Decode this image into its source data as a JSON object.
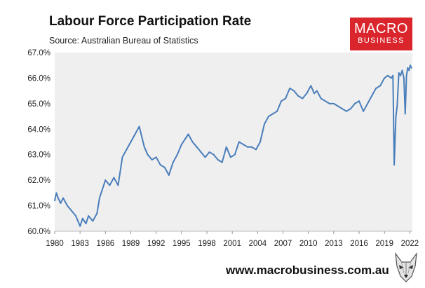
{
  "header": {
    "title": "Labour Force Participation Rate",
    "subtitle": "Source: Australian Bureau of Statistics"
  },
  "logo": {
    "line1": "MACRO",
    "line2": "BUSINESS",
    "color": "#d9252b"
  },
  "footer": {
    "url": "www.macrobusiness.com.au",
    "mascot_icon": "wolf-logo-icon"
  },
  "colors": {
    "line": "#4a7ebb",
    "plot_background": "#efefef"
  },
  "chart_data": {
    "type": "line",
    "title": "Labour Force Participation Rate",
    "subtitle": "Source: Australian Bureau of Statistics",
    "xlabel": "",
    "ylabel": "",
    "xlim": [
      1980,
      2022.3
    ],
    "ylim": [
      60.0,
      67.0
    ],
    "y_ticks": [
      "60.0%",
      "61.0%",
      "62.0%",
      "63.0%",
      "64.0%",
      "65.0%",
      "66.0%",
      "67.0%"
    ],
    "y_tick_values": [
      60,
      61,
      62,
      63,
      64,
      65,
      66,
      67
    ],
    "x_ticks": [
      "1980",
      "1983",
      "1986",
      "1989",
      "1992",
      "1995",
      "1998",
      "2001",
      "2004",
      "2007",
      "2010",
      "2013",
      "2016",
      "2019",
      "2022"
    ],
    "x_tick_values": [
      1980,
      1983,
      1986,
      1989,
      1992,
      1995,
      1998,
      2001,
      2004,
      2007,
      2010,
      2013,
      2016,
      2019,
      2022
    ],
    "grid": false,
    "legend": "none",
    "series": [
      {
        "x": [
          1980.0,
          1980.2,
          1980.4,
          1980.7,
          1981.0,
          1981.5,
          1982.0,
          1982.5,
          1983.0,
          1983.3,
          1983.7,
          1984.0,
          1984.5,
          1985.0,
          1985.3,
          1985.6,
          1986.0,
          1986.5,
          1987.0,
          1987.5,
          1988.0,
          1988.5,
          1989.0,
          1989.5,
          1990.0,
          1990.3,
          1990.6,
          1991.0,
          1991.5,
          1992.0,
          1992.5,
          1993.0,
          1993.5,
          1994.0,
          1994.5,
          1995.0,
          1995.4,
          1995.8,
          1996.3,
          1996.8,
          1997.3,
          1997.8,
          1998.3,
          1998.8,
          1999.3,
          1999.8,
          2000.3,
          2000.8,
          2001.3,
          2001.8,
          2002.3,
          2002.8,
          2003.3,
          2003.8,
          2004.3,
          2004.8,
          2005.3,
          2005.8,
          2006.3,
          2006.8,
          2007.3,
          2007.8,
          2008.3,
          2008.8,
          2009.3,
          2009.8,
          2010.3,
          2010.7,
          2011.0,
          2011.5,
          2012.0,
          2012.5,
          2013.0,
          2013.5,
          2014.0,
          2014.5,
          2015.0,
          2015.5,
          2016.0,
          2016.5,
          2017.0,
          2017.5,
          2018.0,
          2018.5,
          2019.0,
          2019.4,
          2019.8,
          2020.0,
          2020.15,
          2020.35,
          2020.5,
          2020.7,
          2020.9,
          2021.1,
          2021.3,
          2021.45,
          2021.6,
          2021.75,
          2021.9,
          2022.05,
          2022.2
        ],
        "values": [
          61.2,
          61.5,
          61.3,
          61.1,
          61.3,
          61.0,
          60.8,
          60.6,
          60.2,
          60.5,
          60.3,
          60.6,
          60.4,
          60.7,
          61.3,
          61.6,
          62.0,
          61.8,
          62.1,
          61.8,
          62.9,
          63.2,
          63.5,
          63.8,
          64.1,
          63.7,
          63.3,
          63.0,
          62.8,
          62.9,
          62.6,
          62.5,
          62.2,
          62.7,
          63.0,
          63.4,
          63.6,
          63.8,
          63.5,
          63.3,
          63.1,
          62.9,
          63.1,
          63.0,
          62.8,
          62.7,
          63.3,
          62.9,
          63.0,
          63.5,
          63.4,
          63.3,
          63.3,
          63.2,
          63.5,
          64.2,
          64.5,
          64.6,
          64.7,
          65.1,
          65.2,
          65.6,
          65.5,
          65.3,
          65.2,
          65.4,
          65.7,
          65.4,
          65.5,
          65.2,
          65.1,
          65.0,
          65.0,
          64.9,
          64.8,
          64.7,
          64.8,
          65.0,
          65.1,
          64.7,
          65.0,
          65.3,
          65.6,
          65.7,
          66.0,
          66.1,
          66.0,
          66.1,
          62.6,
          64.5,
          64.9,
          66.2,
          66.1,
          66.3,
          66.0,
          64.6,
          66.1,
          66.4,
          66.3,
          66.5,
          66.4
        ]
      }
    ]
  }
}
